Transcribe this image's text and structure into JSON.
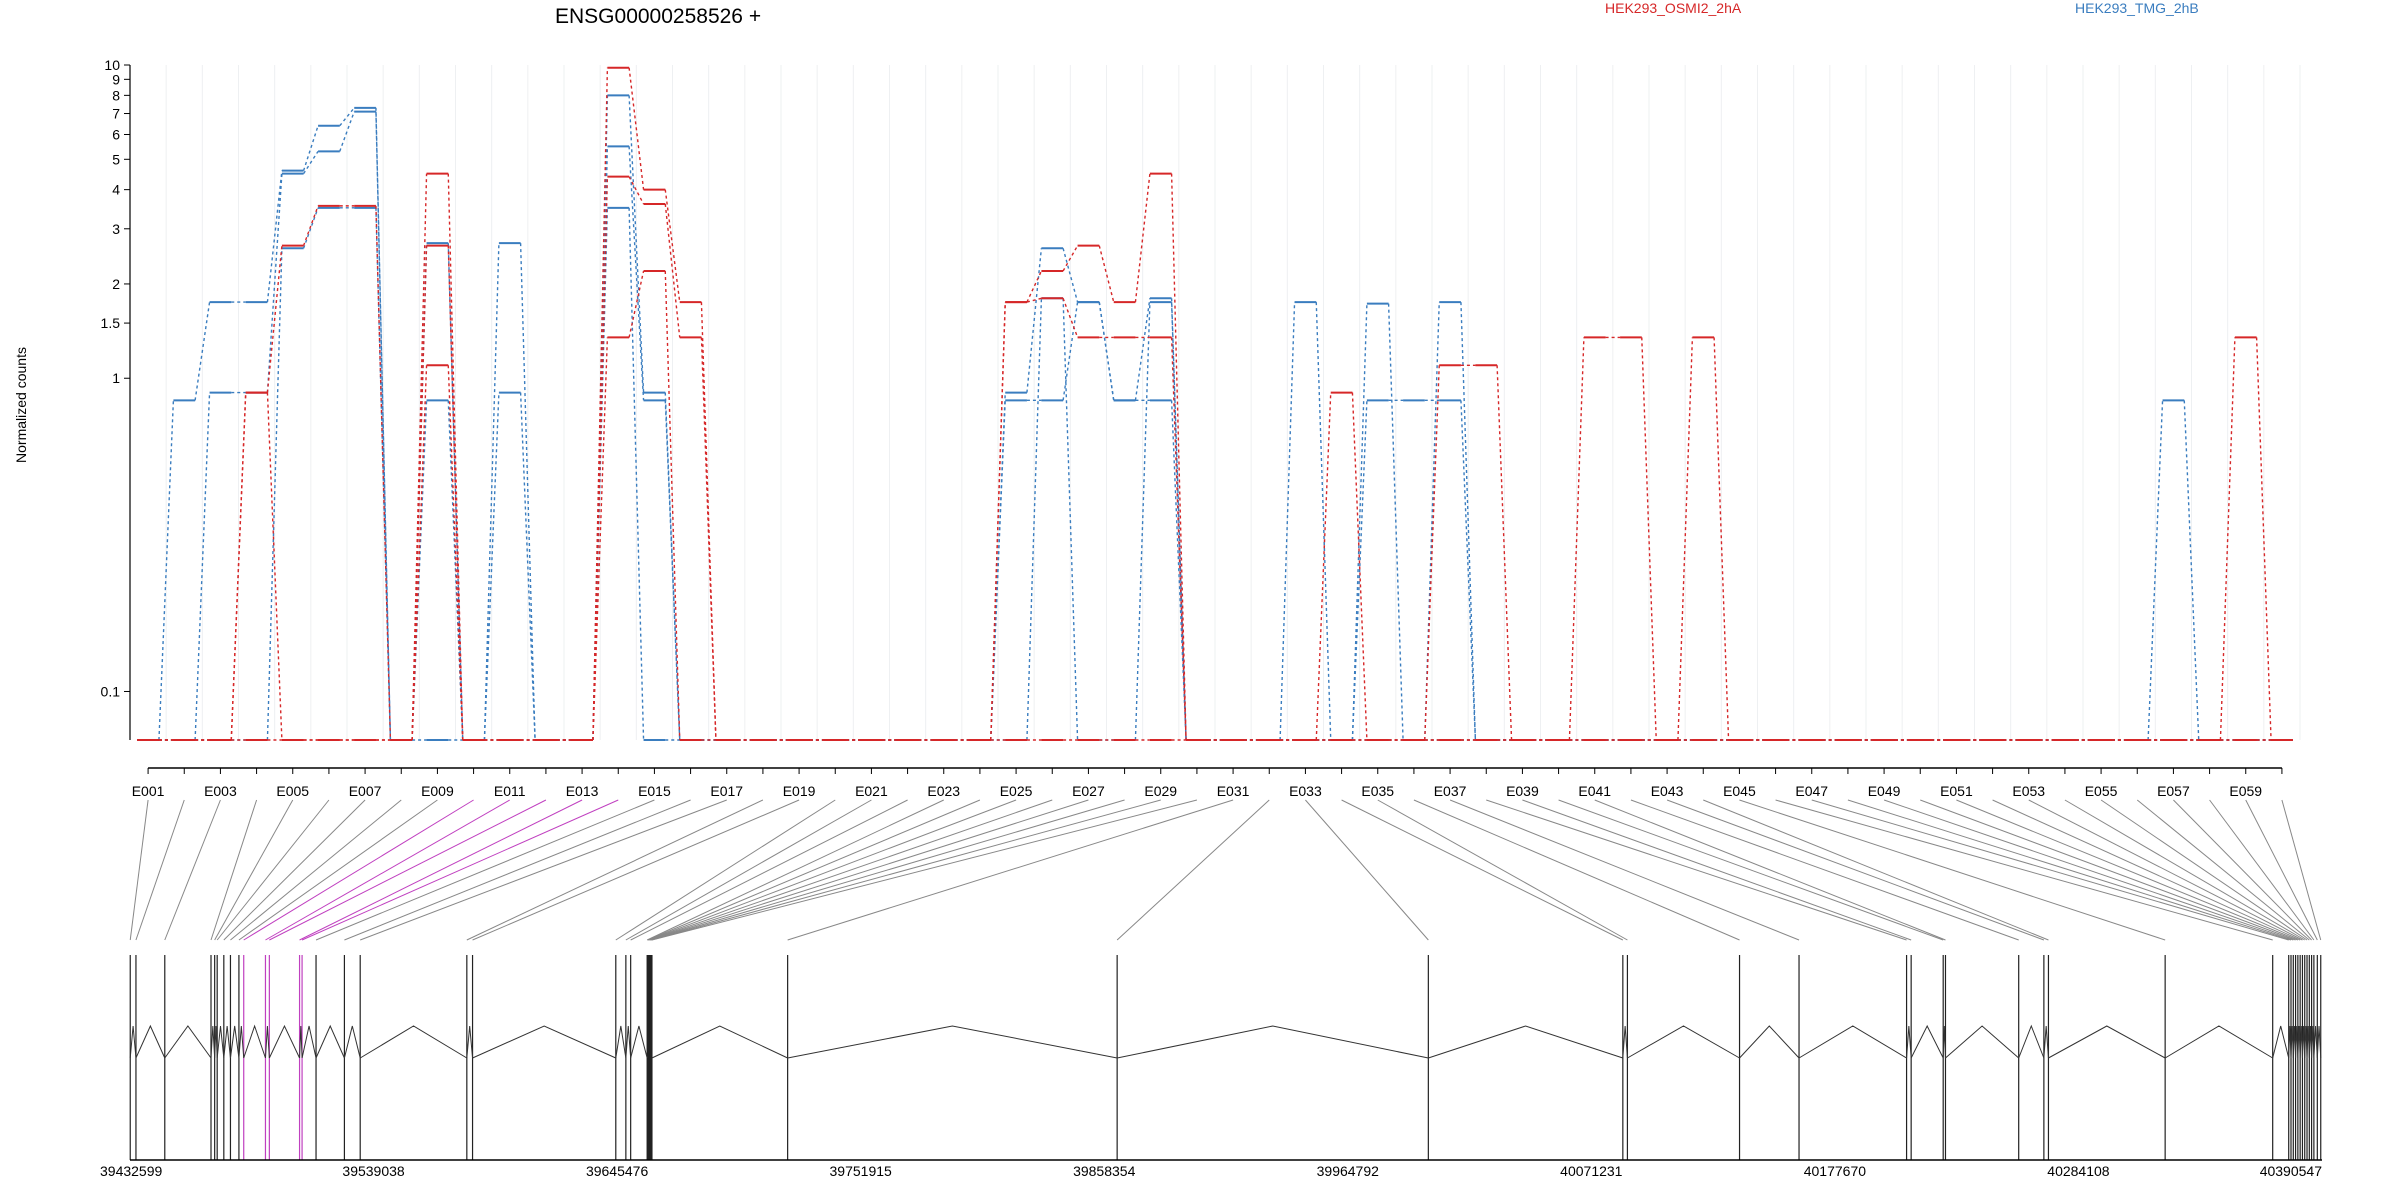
{
  "chart_data": {
    "type": "line",
    "title": "ENSG00000258526 +",
    "ylabel": "Normalized counts",
    "y_scale": "log",
    "ylim": [
      0.07,
      10
    ],
    "y_ticks": [
      {
        "v": 10,
        "label": "10"
      },
      {
        "v": 9,
        "label": "9"
      },
      {
        "v": 8,
        "label": "8"
      },
      {
        "v": 7,
        "label": "7"
      },
      {
        "v": 6,
        "label": "6"
      },
      {
        "v": 5,
        "label": "5"
      },
      {
        "v": 4,
        "label": "4"
      },
      {
        "v": 3,
        "label": "3"
      },
      {
        "v": 2,
        "label": "2"
      },
      {
        "v": 1.5,
        "label": "1.5"
      },
      {
        "v": 1,
        "label": "1"
      },
      {
        "v": 0.1,
        "label": "0.1"
      }
    ],
    "exon_labels": [
      "E001",
      "E003",
      "E005",
      "E007",
      "E009",
      "E011",
      "E013",
      "E015",
      "E017",
      "E019",
      "E021",
      "E023",
      "E025",
      "E027",
      "E029",
      "E031",
      "E033",
      "E035",
      "E037",
      "E039",
      "E041",
      "E043",
      "E045",
      "E047",
      "E049",
      "E051",
      "E053",
      "E055",
      "E057",
      "E059"
    ],
    "legend": [
      {
        "name": "HEK293_OSMI2_2hA",
        "color": "#d62728"
      },
      {
        "name": "HEK293_TMG_2hB",
        "color": "#3a7dbf"
      }
    ],
    "colors": {
      "red": "#d62728",
      "blue": "#3a7dbf",
      "grey": "#555555",
      "magenta": "#c040c0"
    },
    "n_exons": 60,
    "series": [
      {
        "color": "#3a7dbf",
        "values": [
          0,
          0.85,
          1.75,
          1.75,
          4.6,
          6.4,
          7.3,
          0,
          0.85,
          0,
          2.7,
          0,
          0,
          8,
          0.9,
          0,
          0,
          0,
          0,
          0,
          0,
          0,
          0,
          0,
          0.9,
          2.6,
          1.75,
          0.85,
          1.8,
          0,
          0,
          0,
          1.75,
          0,
          1.73,
          0,
          1.75,
          0,
          0,
          0,
          0,
          0,
          0,
          0,
          0,
          0,
          0,
          0,
          0,
          0,
          0,
          0,
          0,
          0,
          0,
          0,
          0.85,
          0,
          0,
          0
        ]
      },
      {
        "color": "#3a7dbf",
        "values": [
          0,
          0,
          0.9,
          0.9,
          4.5,
          5.3,
          7.1,
          0,
          2.7,
          0,
          0.9,
          0,
          0,
          5.5,
          0.85,
          0,
          0,
          0,
          0,
          0,
          0,
          0,
          0,
          0,
          0.85,
          0.85,
          1.75,
          0.85,
          0.85,
          0,
          0,
          0,
          0,
          0,
          0.85,
          0.85,
          0.85,
          0,
          0,
          0,
          0,
          0,
          0,
          0,
          0,
          0,
          0,
          0,
          0,
          0,
          0,
          0,
          0,
          0,
          0,
          0,
          0,
          0,
          0,
          0
        ]
      },
      {
        "color": "#3a7dbf",
        "values": [
          0,
          0,
          0,
          0,
          2.6,
          3.5,
          3.5,
          0,
          0,
          0,
          0,
          0,
          0,
          3.5,
          0,
          0,
          0,
          0,
          0,
          0,
          0,
          0,
          0,
          0,
          0,
          1.8,
          0,
          0,
          1.75,
          0,
          0,
          0,
          0,
          0,
          0,
          0,
          0,
          0,
          0,
          0,
          0,
          0,
          0,
          0,
          0,
          0,
          0,
          0,
          0,
          0,
          0,
          0,
          0,
          0,
          0,
          0,
          0,
          0,
          0,
          0
        ]
      },
      {
        "color": "#d62728",
        "values": [
          0,
          0,
          0,
          0.9,
          2.65,
          3.55,
          3.55,
          0,
          4.5,
          0,
          0,
          0,
          0,
          9.8,
          4,
          1.75,
          0,
          0,
          0,
          0,
          0,
          0,
          0,
          0,
          1.75,
          2.2,
          2.65,
          1.75,
          4.5,
          0,
          0,
          0,
          0,
          0.9,
          0,
          0,
          1.1,
          1.1,
          0,
          0,
          1.35,
          1.35,
          0,
          1.35,
          0,
          0,
          0,
          0,
          0,
          0,
          0,
          0,
          0,
          0,
          0,
          0,
          0,
          0,
          1.35,
          0
        ]
      },
      {
        "color": "#d62728",
        "values": [
          0,
          0,
          0,
          0.9,
          0,
          0,
          0,
          0,
          1.1,
          0,
          0,
          0,
          0,
          4.4,
          3.6,
          1.35,
          0,
          0,
          0,
          0,
          0,
          0,
          0,
          0,
          1.75,
          1.8,
          1.35,
          1.35,
          1.35,
          0,
          0,
          0,
          0,
          0,
          0,
          0,
          0,
          0,
          0,
          0,
          0,
          0,
          0,
          0,
          0,
          0,
          0,
          0,
          0,
          0,
          0,
          0,
          0,
          0,
          0,
          0,
          0,
          0,
          0,
          0
        ]
      },
      {
        "color": "#d62728",
        "values": [
          0,
          0,
          0,
          0,
          0,
          0,
          0,
          0,
          2.65,
          0,
          0,
          0,
          0,
          1.35,
          2.2,
          0,
          0,
          0,
          0,
          0,
          0,
          0,
          0,
          0,
          0,
          0,
          0,
          0,
          0,
          0,
          0,
          0,
          0,
          0,
          0,
          0,
          0,
          0,
          0,
          0,
          0,
          0,
          0,
          0,
          0,
          0,
          0,
          0,
          0,
          0,
          0,
          0,
          0,
          0,
          0,
          0,
          0,
          0,
          0,
          0
        ]
      }
    ],
    "genome": {
      "start": 39432599,
      "end": 40390547,
      "ticks": [
        {
          "v": 39432599,
          "label": "39432599"
        },
        {
          "v": 39539038,
          "label": "39539038"
        },
        {
          "v": 39645476,
          "label": "39645476"
        },
        {
          "v": 39751915,
          "label": "39751915"
        },
        {
          "v": 39858354,
          "label": "39858354"
        },
        {
          "v": 39964792,
          "label": "39964792"
        },
        {
          "v": 40071231,
          "label": "40071231"
        },
        {
          "v": 40177670,
          "label": "40177670"
        },
        {
          "v": 40284108,
          "label": "40284108"
        },
        {
          "v": 40390547,
          "label": "40390547"
        }
      ],
      "exon_positions": [
        39432700,
        39435200,
        39447800,
        39468000,
        39469600,
        39470700,
        39473600,
        39476500,
        39480200,
        39482300,
        39491800,
        39493500,
        39506700,
        39507800,
        39513900,
        39526300,
        39533200,
        39579800,
        39582300,
        39644900,
        39649300,
        39651400,
        39658600,
        39658900,
        39659200,
        39659500,
        39659800,
        39660100,
        39660400,
        39660700,
        39720000,
        39864000,
        40000000,
        40085000,
        40087000,
        40136000,
        40162000,
        40209000,
        40211000,
        40225000,
        40226000,
        40258000,
        40269000,
        40271000,
        40322000,
        40369000,
        40376000,
        40377000,
        40378000,
        40379000,
        40380000,
        40381000,
        40382000,
        40383000,
        40384000,
        40385000,
        40386000,
        40387000,
        40388500,
        40390000
      ],
      "magenta_exons": [
        9,
        10,
        11,
        12,
        13
      ]
    }
  }
}
